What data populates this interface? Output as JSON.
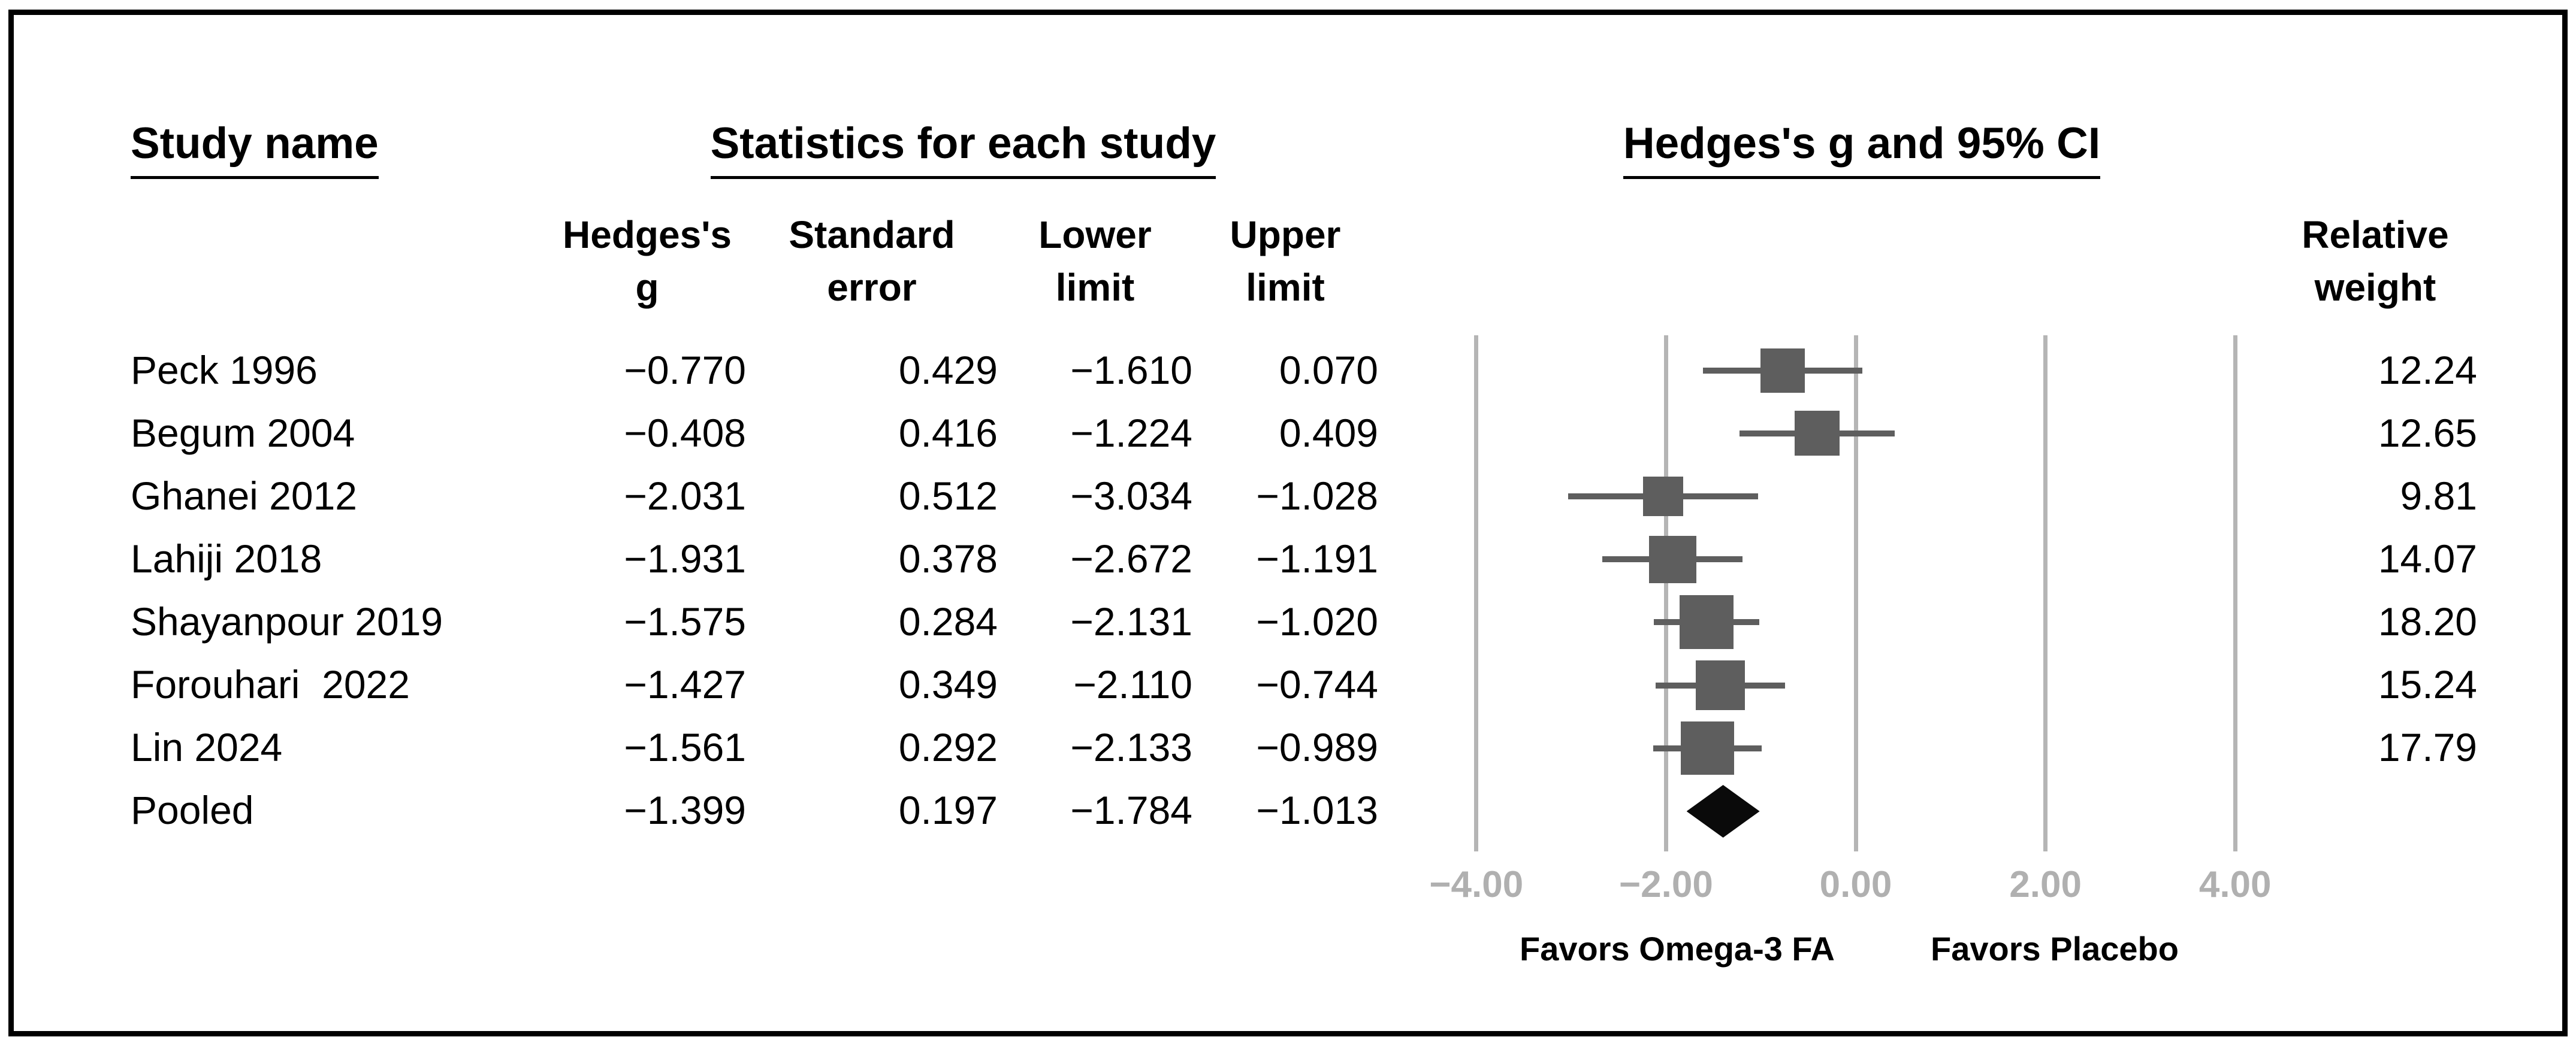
{
  "figure": {
    "study_col_header": "Study name",
    "stats_header": "Statistics for each study",
    "plot_header": "Hedges's g and 95% CI"
  },
  "table": {
    "columns": {
      "hedges_g": {
        "line1": "Hedges's",
        "line2": "g"
      },
      "standard_error": {
        "line1": "Standard",
        "line2": "error"
      },
      "lower_limit": {
        "line1": "Lower",
        "line2": "limit"
      },
      "upper_limit": {
        "line1": "Upper",
        "line2": "limit"
      },
      "relative_weight": {
        "line1": "Relative",
        "line2": "weight"
      }
    },
    "rows": [
      {
        "study": "Peck 1996",
        "g": "−0.770",
        "se": "0.429",
        "lower": "−1.610",
        "upper": "0.070",
        "weight": "12.24"
      },
      {
        "study": "Begum 2004",
        "g": "−0.408",
        "se": "0.416",
        "lower": "−1.224",
        "upper": "0.409",
        "weight": "12.65"
      },
      {
        "study": "Ghanei 2012",
        "g": "−2.031",
        "se": "0.512",
        "lower": "−3.034",
        "upper": "−1.028",
        "weight": "9.81"
      },
      {
        "study": "Lahiji 2018",
        "g": "−1.931",
        "se": "0.378",
        "lower": "−2.672",
        "upper": "−1.191",
        "weight": "14.07"
      },
      {
        "study": "Shayanpour 2019",
        "g": "−1.575",
        "se": "0.284",
        "lower": "−2.131",
        "upper": "−1.020",
        "weight": "18.20"
      },
      {
        "study": "Forouhari  2022",
        "g": "−1.427",
        "se": "0.349",
        "lower": "−2.110",
        "upper": "−0.744",
        "weight": "15.24"
      },
      {
        "study": "Lin 2024",
        "g": "−1.561",
        "se": "0.292",
        "lower": "−2.133",
        "upper": "−0.989",
        "weight": "17.79"
      },
      {
        "study": "Pooled",
        "g": "−1.399",
        "se": "0.197",
        "lower": "−1.784",
        "upper": "−1.013",
        "weight": ""
      }
    ]
  },
  "chart_data": {
    "type": "forest",
    "title": "Hedges's g and 95% CI",
    "effect_measure": "Hedges's g",
    "ci_level": "95% CI",
    "x_axis": {
      "min": -4,
      "max": 4,
      "ticks": [
        {
          "value": -4,
          "label": "−4.00"
        },
        {
          "value": -2,
          "label": "−2.00"
        },
        {
          "value": 0,
          "label": "0.00"
        },
        {
          "value": 2,
          "label": "2.00"
        },
        {
          "value": 4,
          "label": "4.00"
        }
      ]
    },
    "studies": [
      {
        "name": "Peck 1996",
        "g": -0.77,
        "se": 0.429,
        "lower": -1.61,
        "upper": 0.07,
        "weight": 12.24
      },
      {
        "name": "Begum 2004",
        "g": -0.408,
        "se": 0.416,
        "lower": -1.224,
        "upper": 0.409,
        "weight": 12.65
      },
      {
        "name": "Ghanei 2012",
        "g": -2.031,
        "se": 0.512,
        "lower": -3.034,
        "upper": -1.028,
        "weight": 9.81
      },
      {
        "name": "Lahiji 2018",
        "g": -1.931,
        "se": 0.378,
        "lower": -2.672,
        "upper": -1.191,
        "weight": 14.07
      },
      {
        "name": "Shayanpour 2019",
        "g": -1.575,
        "se": 0.284,
        "lower": -2.131,
        "upper": -1.02,
        "weight": 18.2
      },
      {
        "name": "Forouhari  2022",
        "g": -1.427,
        "se": 0.349,
        "lower": -2.11,
        "upper": -0.744,
        "weight": 15.24
      },
      {
        "name": "Lin 2024",
        "g": -1.561,
        "se": 0.292,
        "lower": -2.133,
        "upper": -0.989,
        "weight": 17.79
      }
    ],
    "pooled": {
      "name": "Pooled",
      "g": -1.399,
      "se": 0.197,
      "lower": -1.784,
      "upper": -1.013
    },
    "favors": {
      "left": "Favors Omega-3 FA",
      "right": "Favors Placebo"
    },
    "colors": {
      "square": "#5e5e5e",
      "whisker": "#5e5e5e",
      "diamond": "#0a0a0a",
      "gridline": "#b5b5b5",
      "tick_text": "#b0b0b0"
    }
  }
}
